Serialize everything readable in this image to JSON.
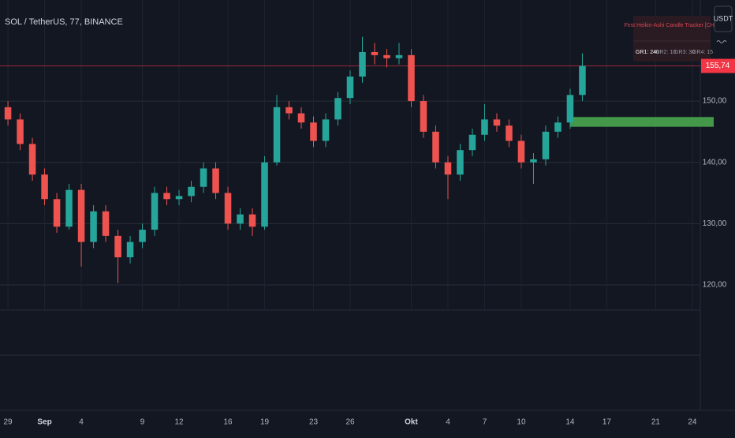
{
  "chart_data": {
    "type": "candlestick",
    "title": "SOL / TetherUS, 77, BINANCE",
    "currency": "USDT",
    "x": [
      0,
      1,
      2,
      3,
      4,
      5,
      6,
      7,
      8,
      9,
      10,
      11,
      12,
      13,
      14,
      15,
      16,
      17,
      18,
      19,
      20,
      21,
      22,
      23,
      24,
      25,
      26,
      27,
      28,
      29,
      30,
      31,
      32,
      33,
      34,
      35,
      36,
      37,
      38,
      39,
      40,
      41,
      42,
      43,
      44,
      45,
      46,
      47
    ],
    "open": [
      149,
      147,
      143,
      138,
      134,
      129.5,
      135.5,
      127,
      132,
      128,
      124.5,
      127,
      129,
      135,
      134,
      134.5,
      136,
      139,
      135,
      130,
      131.5,
      129.5,
      140,
      149,
      148,
      146.5,
      143.5,
      147,
      150.5,
      154,
      158,
      157.5,
      157,
      157.5,
      150,
      145,
      140,
      138,
      142,
      144.5,
      147,
      146,
      143.5,
      140,
      140.5,
      145,
      146.5,
      151
    ],
    "high": [
      150,
      148,
      144,
      139,
      135,
      136.5,
      136.5,
      133,
      133,
      129,
      128,
      130,
      136,
      136,
      135.5,
      137,
      140,
      140,
      136,
      132.5,
      132.5,
      141,
      151,
      150,
      149,
      147.5,
      148,
      151.5,
      155,
      160.5,
      159.5,
      158.5,
      159.5,
      158.5,
      151,
      146,
      141,
      143,
      145.5,
      149.5,
      148,
      147,
      144.5,
      141.5,
      146,
      147.5,
      152,
      157.8
    ],
    "low": [
      146,
      142,
      137,
      133,
      128.5,
      129,
      123,
      126,
      127,
      120.3,
      123.5,
      126,
      128,
      133,
      133,
      133.5,
      135,
      134,
      129,
      129,
      128,
      129,
      139.5,
      147,
      145.5,
      142.5,
      142.5,
      146,
      149.5,
      153,
      156,
      155.5,
      156,
      149,
      144,
      139,
      134,
      137,
      141,
      143.5,
      145,
      142.5,
      139,
      136.5,
      139.5,
      144,
      145.5,
      150
    ],
    "close": [
      147,
      143,
      138,
      134,
      129.5,
      135.5,
      127,
      132,
      128,
      124.5,
      127,
      129,
      135,
      134,
      134.5,
      136,
      139,
      135,
      130,
      131.5,
      129.5,
      140,
      149,
      148,
      146.5,
      143.5,
      147,
      150.5,
      154,
      158,
      157.5,
      157,
      157.5,
      150,
      145,
      140,
      138,
      142,
      144.5,
      147,
      146,
      143.5,
      140,
      140.5,
      145,
      146.5,
      151,
      155.74
    ],
    "up_color": "#26a69a",
    "down_color": "#ef5350",
    "xlim": [
      -0.65,
      56.65
    ],
    "ylim": [
      116,
      166.5
    ],
    "xticks": [
      {
        "value": 0,
        "label": "29"
      },
      {
        "value": 3,
        "label": "Sep"
      },
      {
        "value": 6,
        "label": "4"
      },
      {
        "value": 11,
        "label": "9"
      },
      {
        "value": 14,
        "label": "12"
      },
      {
        "value": 18,
        "label": "16"
      },
      {
        "value": 21,
        "label": "19"
      },
      {
        "value": 25,
        "label": "23"
      },
      {
        "value": 28,
        "label": "26"
      },
      {
        "value": 33,
        "label": "Okt"
      },
      {
        "value": 36,
        "label": "4"
      },
      {
        "value": 39,
        "label": "7"
      },
      {
        "value": 42,
        "label": "10"
      },
      {
        "value": 46,
        "label": "14"
      },
      {
        "value": 49,
        "label": "17"
      },
      {
        "value": 53,
        "label": "21"
      },
      {
        "value": 56,
        "label": "24"
      }
    ],
    "yticks": [
      {
        "value": 150,
        "label": "150,00"
      },
      {
        "value": 140,
        "label": "140,00"
      },
      {
        "value": 130,
        "label": "130,00"
      },
      {
        "value": 120,
        "label": "120,00"
      }
    ],
    "grid": true,
    "last_price": {
      "value": 155.74,
      "label": "155,74",
      "color": "#f23645"
    },
    "zone": {
      "from_x": 46,
      "low": 145.8,
      "high": 147.4,
      "color": "#4caf50"
    },
    "indicator": {
      "title": "First Heikin-Ashi Candle Tracker [CHE]",
      "rows": [
        "GR1: 240",
        "GR2: 10",
        "GR3: 30",
        "GR4: 15"
      ]
    }
  }
}
